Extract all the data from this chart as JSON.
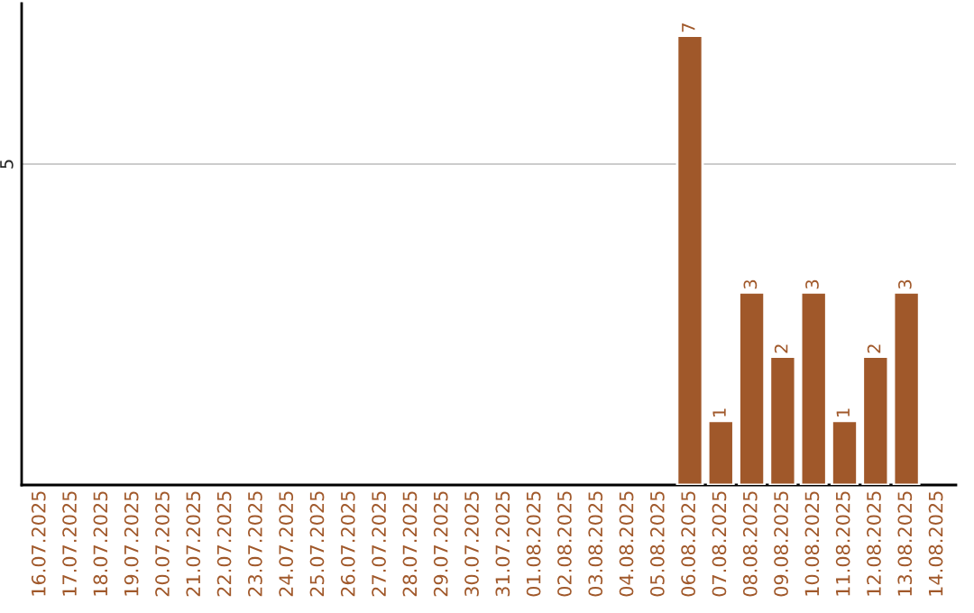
{
  "chart_data": {
    "type": "bar",
    "categories": [
      "16.07.2025",
      "17.07.2025",
      "18.07.2025",
      "19.07.2025",
      "20.07.2025",
      "21.07.2025",
      "22.07.2025",
      "23.07.2025",
      "24.07.2025",
      "25.07.2025",
      "26.07.2025",
      "27.07.2025",
      "28.07.2025",
      "29.07.2025",
      "30.07.2025",
      "31.07.2025",
      "01.08.2025",
      "02.08.2025",
      "03.08.2025",
      "04.08.2025",
      "05.08.2025",
      "06.08.2025",
      "07.08.2025",
      "08.08.2025",
      "09.08.2025",
      "10.08.2025",
      "11.08.2025",
      "12.08.2025",
      "13.08.2025",
      "14.08.2025"
    ],
    "values": [
      null,
      null,
      null,
      null,
      null,
      null,
      null,
      null,
      null,
      null,
      null,
      null,
      null,
      null,
      null,
      null,
      null,
      null,
      null,
      null,
      null,
      7,
      1,
      3,
      2,
      3,
      1,
      2,
      3,
      null
    ],
    "value_labels": [
      null,
      null,
      null,
      null,
      null,
      null,
      null,
      null,
      null,
      null,
      null,
      null,
      null,
      null,
      null,
      null,
      null,
      null,
      null,
      null,
      null,
      "7",
      "1",
      "3",
      "2",
      "3",
      "1",
      "2",
      "3",
      null
    ],
    "color": "#a0582a",
    "ylim": [
      0,
      7.5
    ],
    "yticks": [
      5
    ],
    "grid": "y",
    "legend": false
  }
}
